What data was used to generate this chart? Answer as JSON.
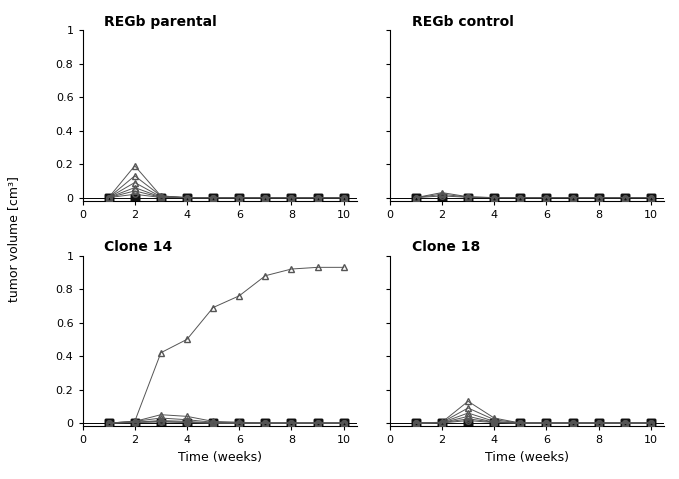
{
  "ylabel": "tumor volume [cm³]",
  "xlabel": "Time (weeks)",
  "ylim": [
    -0.02,
    1.0
  ],
  "xlim": [
    0,
    10.5
  ],
  "yticks": [
    0,
    0.2,
    0.4,
    0.6,
    0.8,
    1
  ],
  "xticks": [
    0,
    2,
    4,
    6,
    8,
    10
  ],
  "subplot_titles": [
    "REGb parental",
    "REGb control",
    "Clone 14",
    "Clone 18"
  ],
  "panels": {
    "regb_parental": {
      "triangles": [
        {
          "x": [
            1,
            2,
            3,
            4,
            5,
            6,
            7,
            8,
            9,
            10
          ],
          "y": [
            0,
            0.19,
            0.01,
            0,
            0,
            0,
            0,
            0,
            0,
            0
          ]
        },
        {
          "x": [
            1,
            2,
            3,
            4,
            5,
            6,
            7,
            8,
            9,
            10
          ],
          "y": [
            0,
            0.13,
            0.01,
            0,
            0,
            0,
            0,
            0,
            0,
            0
          ]
        },
        {
          "x": [
            1,
            2,
            3,
            4,
            5,
            6,
            7,
            8,
            9,
            10
          ],
          "y": [
            0,
            0.09,
            0.005,
            0,
            0,
            0,
            0,
            0,
            0,
            0
          ]
        },
        {
          "x": [
            1,
            2,
            3,
            4,
            5,
            6,
            7,
            8,
            9,
            10
          ],
          "y": [
            0,
            0.06,
            0.003,
            0,
            0,
            0,
            0,
            0,
            0,
            0
          ]
        }
      ],
      "circles": [
        {
          "x": [
            1,
            2,
            3,
            4,
            5,
            6,
            7,
            8,
            9,
            10
          ],
          "y": [
            0,
            0.04,
            0.002,
            0,
            0,
            0,
            0,
            0,
            0,
            0
          ]
        },
        {
          "x": [
            1,
            2,
            3,
            4,
            5,
            6,
            7,
            8,
            9,
            10
          ],
          "y": [
            0,
            0.02,
            0.001,
            0,
            0,
            0,
            0,
            0,
            0,
            0
          ]
        }
      ],
      "squares": [
        {
          "x": [
            1,
            2,
            3,
            4,
            5,
            6,
            7,
            8,
            9,
            10
          ],
          "y": [
            0,
            0,
            0,
            0,
            0,
            0,
            0,
            0,
            0,
            0
          ]
        },
        {
          "x": [
            1,
            2,
            3,
            4,
            5,
            6,
            7,
            8,
            9,
            10
          ],
          "y": [
            0,
            0,
            0,
            0,
            0,
            0,
            0,
            0,
            0,
            0
          ]
        },
        {
          "x": [
            1,
            2,
            3,
            4,
            5,
            6,
            7,
            8,
            9,
            10
          ],
          "y": [
            0,
            0,
            0,
            0,
            0,
            0,
            0,
            0,
            0,
            0
          ]
        }
      ]
    },
    "regb_control": {
      "triangles": [
        {
          "x": [
            1,
            2,
            3,
            4,
            5,
            6,
            7,
            8,
            9,
            10
          ],
          "y": [
            0,
            0.03,
            0.005,
            0,
            0,
            0,
            0,
            0,
            0,
            0
          ]
        },
        {
          "x": [
            1,
            2,
            3,
            4,
            5,
            6,
            7,
            8,
            9,
            10
          ],
          "y": [
            0,
            0.02,
            0.003,
            0,
            0,
            0,
            0,
            0,
            0,
            0
          ]
        }
      ],
      "circles": [
        {
          "x": [
            1,
            2,
            3,
            4,
            5,
            6,
            7,
            8,
            9,
            10
          ],
          "y": [
            0,
            0.01,
            0.002,
            0,
            0,
            0,
            0,
            0,
            0,
            0
          ]
        }
      ],
      "squares": [
        {
          "x": [
            1,
            2,
            3,
            4,
            5,
            6,
            7,
            8,
            9,
            10
          ],
          "y": [
            0,
            0,
            0,
            0,
            0,
            0,
            0,
            0,
            0,
            0
          ]
        },
        {
          "x": [
            1,
            2,
            3,
            4,
            5,
            6,
            7,
            8,
            9,
            10
          ],
          "y": [
            0,
            0,
            0,
            0,
            0,
            0,
            0,
            0,
            0,
            0
          ]
        },
        {
          "x": [
            1,
            2,
            3,
            4,
            5,
            6,
            7,
            8,
            9,
            10
          ],
          "y": [
            0,
            0,
            0,
            0,
            0,
            0,
            0,
            0,
            0,
            0
          ]
        }
      ]
    },
    "clone14": {
      "triangles": [
        {
          "x": [
            1,
            2,
            3,
            4,
            5,
            6,
            7,
            8,
            9,
            10
          ],
          "y": [
            0,
            0.01,
            0.42,
            0.5,
            0.69,
            0.76,
            0.88,
            0.92,
            0.93,
            0.93
          ]
        },
        {
          "x": [
            1,
            2,
            3,
            4,
            5,
            6,
            7,
            8,
            9,
            10
          ],
          "y": [
            0,
            0.01,
            0.05,
            0.04,
            0.01,
            0.005,
            0,
            0,
            0,
            0
          ]
        },
        {
          "x": [
            1,
            2,
            3,
            4,
            5,
            6,
            7,
            8,
            9,
            10
          ],
          "y": [
            0,
            0.01,
            0.03,
            0.02,
            0.005,
            0,
            0,
            0,
            0,
            0
          ]
        },
        {
          "x": [
            1,
            2,
            3,
            4,
            5,
            6,
            7,
            8,
            9,
            10
          ],
          "y": [
            0,
            0.005,
            0.015,
            0.01,
            0,
            0,
            0,
            0,
            0,
            0
          ]
        }
      ],
      "circles": [
        {
          "x": [
            1,
            2,
            3,
            4,
            5,
            6,
            7,
            8,
            9,
            10
          ],
          "y": [
            0,
            0.005,
            0.01,
            0.005,
            0,
            0,
            0,
            0,
            0,
            0
          ]
        },
        {
          "x": [
            1,
            2,
            3,
            4,
            5,
            6,
            7,
            8,
            9,
            10
          ],
          "y": [
            0,
            0.003,
            0.007,
            0.003,
            0,
            0,
            0,
            0,
            0,
            0
          ]
        }
      ],
      "squares": [
        {
          "x": [
            1,
            2,
            3,
            4,
            5,
            6,
            7,
            8,
            9,
            10
          ],
          "y": [
            0,
            0,
            0,
            0,
            0,
            0,
            0,
            0,
            0,
            0
          ]
        },
        {
          "x": [
            1,
            2,
            3,
            4,
            5,
            6,
            7,
            8,
            9,
            10
          ],
          "y": [
            0,
            0,
            0,
            0,
            0,
            0,
            0,
            0,
            0,
            0
          ]
        },
        {
          "x": [
            1,
            2,
            3,
            4,
            5,
            6,
            7,
            8,
            9,
            10
          ],
          "y": [
            0,
            0,
            0,
            0,
            0,
            0,
            0,
            0,
            0,
            0
          ]
        }
      ]
    },
    "clone18": {
      "triangles": [
        {
          "x": [
            1,
            2,
            3,
            4,
            5,
            6,
            7,
            8,
            9,
            10
          ],
          "y": [
            0,
            0.005,
            0.13,
            0.03,
            0,
            0,
            0,
            0,
            0,
            0
          ]
        },
        {
          "x": [
            1,
            2,
            3,
            4,
            5,
            6,
            7,
            8,
            9,
            10
          ],
          "y": [
            0,
            0.004,
            0.09,
            0.02,
            0,
            0,
            0,
            0,
            0,
            0
          ]
        },
        {
          "x": [
            1,
            2,
            3,
            4,
            5,
            6,
            7,
            8,
            9,
            10
          ],
          "y": [
            0,
            0.003,
            0.06,
            0.01,
            0,
            0,
            0,
            0,
            0,
            0
          ]
        },
        {
          "x": [
            1,
            2,
            3,
            4,
            5,
            6,
            7,
            8,
            9,
            10
          ],
          "y": [
            0,
            0.002,
            0.04,
            0.005,
            0,
            0,
            0,
            0,
            0,
            0
          ]
        }
      ],
      "circles": [
        {
          "x": [
            1,
            2,
            3,
            4,
            5,
            6,
            7,
            8,
            9,
            10
          ],
          "y": [
            0,
            0.002,
            0.025,
            0.005,
            0,
            0,
            0,
            0,
            0,
            0
          ]
        },
        {
          "x": [
            1,
            2,
            3,
            4,
            5,
            6,
            7,
            8,
            9,
            10
          ],
          "y": [
            0,
            0.001,
            0.015,
            0.003,
            0,
            0,
            0,
            0,
            0,
            0
          ]
        }
      ],
      "squares": [
        {
          "x": [
            1,
            2,
            3,
            4,
            5,
            6,
            7,
            8,
            9,
            10
          ],
          "y": [
            0,
            0,
            0,
            0,
            0,
            0,
            0,
            0,
            0,
            0
          ]
        },
        {
          "x": [
            1,
            2,
            3,
            4,
            5,
            6,
            7,
            8,
            9,
            10
          ],
          "y": [
            0,
            0,
            0,
            0,
            0,
            0,
            0,
            0,
            0,
            0
          ]
        },
        {
          "x": [
            1,
            2,
            3,
            4,
            5,
            6,
            7,
            8,
            9,
            10
          ],
          "y": [
            0,
            0,
            0,
            0,
            0,
            0,
            0,
            0,
            0,
            0
          ]
        }
      ]
    }
  },
  "line_color": "#555555",
  "square_color": "#111111",
  "triangle_color": "#666666",
  "circle_color": "#777777",
  "bg_color": "#ffffff",
  "fontsize_title": 10,
  "fontsize_label": 9,
  "fontsize_tick": 8
}
